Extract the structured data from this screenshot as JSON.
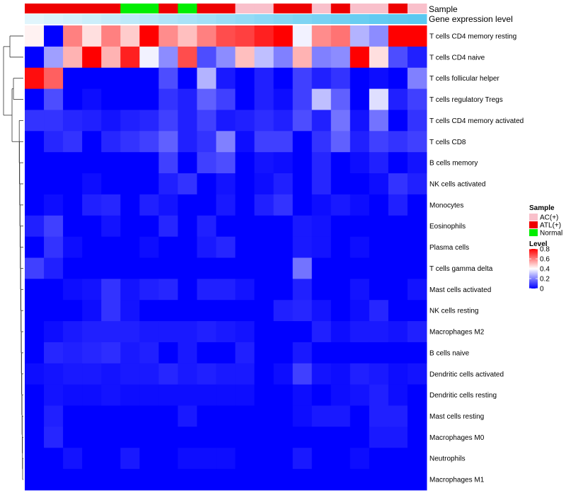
{
  "chart_data": {
    "type": "heatmap",
    "title": "",
    "annotation_tracks": [
      "Sample",
      "Gene expression level"
    ],
    "samples": [
      "ATL(+)",
      "ATL(+)",
      "ATL(+)",
      "ATL(+)",
      "ATL(+)",
      "Normal",
      "Normal",
      "ATL(+)",
      "Normal",
      "ATL(+)",
      "ATL(+)",
      "AC(+)",
      "AC(+)",
      "ATL(+)",
      "ATL(+)",
      "AC(+)",
      "ATL(+)",
      "AC(+)",
      "AC(+)",
      "ATL(+)",
      "AC(+)"
    ],
    "expression_level": [
      0.05,
      0.1,
      0.15,
      0.2,
      0.25,
      0.3,
      0.35,
      0.4,
      0.45,
      0.5,
      0.55,
      0.6,
      0.65,
      0.7,
      0.75,
      0.8,
      0.85,
      0.9,
      0.95,
      0.98,
      1.0
    ],
    "rows": [
      "T cells CD4 memory resting",
      "T cells CD4 naive",
      "T cells follicular helper",
      "T cells regulatory  Tregs",
      "T cells CD4 memory activated",
      "T cells CD8",
      "B cells memory",
      "NK cells activated",
      "Monocytes",
      "Eosinophils",
      "Plasma cells",
      "T cells gamma delta",
      "Mast cells activated",
      "NK cells resting",
      "Macrophages M2",
      "B cells naive",
      "Dendritic cells activated",
      "Dendritic cells resting",
      "Mast cells resting",
      "Macrophages M0",
      "Neutrophils",
      "Macrophages M1"
    ],
    "values": [
      [
        0.42,
        0.0,
        0.6,
        0.45,
        0.6,
        0.48,
        0.8,
        0.58,
        0.5,
        0.6,
        0.68,
        0.7,
        0.75,
        0.8,
        0.38,
        0.58,
        0.62,
        0.28,
        0.22,
        0.8,
        0.8
      ],
      [
        0.0,
        0.25,
        0.52,
        0.8,
        0.52,
        0.75,
        0.38,
        0.22,
        0.68,
        0.12,
        0.22,
        0.5,
        0.3,
        0.2,
        0.52,
        0.2,
        0.22,
        0.8,
        0.45,
        0.12,
        0.05
      ],
      [
        0.78,
        0.65,
        0.0,
        0.0,
        0.0,
        0.0,
        0.0,
        0.12,
        0.0,
        0.28,
        0.04,
        0.0,
        0.05,
        0.0,
        0.1,
        0.05,
        0.08,
        0.0,
        0.02,
        0.0,
        0.2
      ],
      [
        0.0,
        0.12,
        0.0,
        0.02,
        0.0,
        0.0,
        0.0,
        0.08,
        0.05,
        0.15,
        0.1,
        0.0,
        0.05,
        0.02,
        0.1,
        0.3,
        0.15,
        0.0,
        0.35,
        0.05,
        0.1
      ],
      [
        0.08,
        0.08,
        0.06,
        0.05,
        0.03,
        0.05,
        0.06,
        0.1,
        0.05,
        0.1,
        0.04,
        0.05,
        0.07,
        0.05,
        0.12,
        0.05,
        0.18,
        0.03,
        0.18,
        0.0,
        0.08
      ],
      [
        0.0,
        0.06,
        0.08,
        0.0,
        0.06,
        0.08,
        0.1,
        0.15,
        0.05,
        0.08,
        0.2,
        0.02,
        0.1,
        0.1,
        0.0,
        0.08,
        0.15,
        0.05,
        0.1,
        0.08,
        0.1
      ],
      [
        0.0,
        0.0,
        0.0,
        0.0,
        0.0,
        0.0,
        0.0,
        0.1,
        0.0,
        0.1,
        0.12,
        0.0,
        0.03,
        0.02,
        0.0,
        0.06,
        0.0,
        0.02,
        0.05,
        0.0,
        0.03
      ],
      [
        0.0,
        0.0,
        0.0,
        0.02,
        0.0,
        0.0,
        0.0,
        0.05,
        0.08,
        0.0,
        0.03,
        0.0,
        0.02,
        0.05,
        0.0,
        0.06,
        0.0,
        0.0,
        0.02,
        0.08,
        0.05
      ],
      [
        0.0,
        0.02,
        0.0,
        0.05,
        0.06,
        0.0,
        0.05,
        0.03,
        0.0,
        0.0,
        0.04,
        0.0,
        0.05,
        0.08,
        0.0,
        0.02,
        0.04,
        0.02,
        0.0,
        0.05,
        0.0
      ],
      [
        0.05,
        0.1,
        0.0,
        0.0,
        0.03,
        0.0,
        0.0,
        0.06,
        0.0,
        0.05,
        0.0,
        0.0,
        0.0,
        0.0,
        0.04,
        0.03,
        0.0,
        0.0,
        0.0,
        0.0,
        0.0
      ],
      [
        0.0,
        0.08,
        0.02,
        0.0,
        0.0,
        0.0,
        0.02,
        0.0,
        0.0,
        0.04,
        0.06,
        0.0,
        0.0,
        0.0,
        0.04,
        0.03,
        0.0,
        0.02,
        0.0,
        0.0,
        0.0
      ],
      [
        0.1,
        0.05,
        0.0,
        0.0,
        0.0,
        0.0,
        0.0,
        0.0,
        0.0,
        0.0,
        0.0,
        0.0,
        0.0,
        0.0,
        0.18,
        0.0,
        0.0,
        0.0,
        0.0,
        0.0,
        0.0
      ],
      [
        0.0,
        0.0,
        0.02,
        0.03,
        0.08,
        0.03,
        0.05,
        0.06,
        0.0,
        0.05,
        0.05,
        0.03,
        0.0,
        0.0,
        0.05,
        0.0,
        0.0,
        0.03,
        0.0,
        0.0,
        0.03
      ],
      [
        0.0,
        0.0,
        0.0,
        0.02,
        0.08,
        0.03,
        0.0,
        0.0,
        0.0,
        0.0,
        0.0,
        0.0,
        0.0,
        0.05,
        0.06,
        0.03,
        0.0,
        0.02,
        0.06,
        0.0,
        0.0
      ],
      [
        0.0,
        0.02,
        0.04,
        0.05,
        0.05,
        0.05,
        0.04,
        0.04,
        0.04,
        0.05,
        0.04,
        0.03,
        0.0,
        0.0,
        0.0,
        0.05,
        0.02,
        0.04,
        0.04,
        0.03,
        0.05
      ],
      [
        0.0,
        0.06,
        0.05,
        0.06,
        0.07,
        0.04,
        0.05,
        0.0,
        0.04,
        0.0,
        0.0,
        0.05,
        0.0,
        0.0,
        0.04,
        0.0,
        0.0,
        0.0,
        0.0,
        0.0,
        0.0
      ],
      [
        0.02,
        0.03,
        0.04,
        0.04,
        0.03,
        0.04,
        0.04,
        0.06,
        0.04,
        0.05,
        0.04,
        0.04,
        0.0,
        0.02,
        0.1,
        0.03,
        0.02,
        0.05,
        0.04,
        0.02,
        0.03
      ],
      [
        0.0,
        0.03,
        0.02,
        0.02,
        0.03,
        0.02,
        0.02,
        0.02,
        0.02,
        0.02,
        0.02,
        0.02,
        0.0,
        0.0,
        0.02,
        0.0,
        0.02,
        0.03,
        0.05,
        0.02,
        0.0
      ],
      [
        0.0,
        0.05,
        0.0,
        0.0,
        0.0,
        0.0,
        0.0,
        0.0,
        0.04,
        0.0,
        0.0,
        0.0,
        0.0,
        0.0,
        0.02,
        0.04,
        0.04,
        0.0,
        0.05,
        0.05,
        0.0
      ],
      [
        0.0,
        0.06,
        0.0,
        0.0,
        0.0,
        0.0,
        0.0,
        0.0,
        0.0,
        0.0,
        0.0,
        0.0,
        0.0,
        0.0,
        0.0,
        0.0,
        0.0,
        0.0,
        0.04,
        0.04,
        0.0
      ],
      [
        0.0,
        0.0,
        0.03,
        0.0,
        0.0,
        0.04,
        0.0,
        0.0,
        0.02,
        0.02,
        0.02,
        0.0,
        0.0,
        0.0,
        0.04,
        0.0,
        0.0,
        0.02,
        0.0,
        0.0,
        0.0
      ],
      [
        0.0,
        0.0,
        0.0,
        0.0,
        0.0,
        0.0,
        0.0,
        0.0,
        0.0,
        0.0,
        0.0,
        0.0,
        0.0,
        0.0,
        0.0,
        0.0,
        0.0,
        0.0,
        0.0,
        0.0,
        0.0
      ]
    ],
    "legend": {
      "sample_title": "Sample",
      "sample_items": [
        {
          "label": "AC(+)",
          "color": "#f9c0cb"
        },
        {
          "label": "ATL(+)",
          "color": "#ee0000"
        },
        {
          "label": "Normal",
          "color": "#00ee00"
        }
      ],
      "level_title": "Level",
      "level_ticks": [
        "0.8",
        "0.6",
        "0.4",
        "0.2",
        "0"
      ],
      "level_tick_values": [
        0.8,
        0.6,
        0.4,
        0.2,
        0.0
      ],
      "level_range": [
        0,
        0.8
      ]
    },
    "colors": {
      "low": "#0000ff",
      "mid": "#ffffff",
      "high": "#ff0000",
      "expr_low": "#e8f7fd",
      "expr_high": "#5bc8f0"
    }
  }
}
